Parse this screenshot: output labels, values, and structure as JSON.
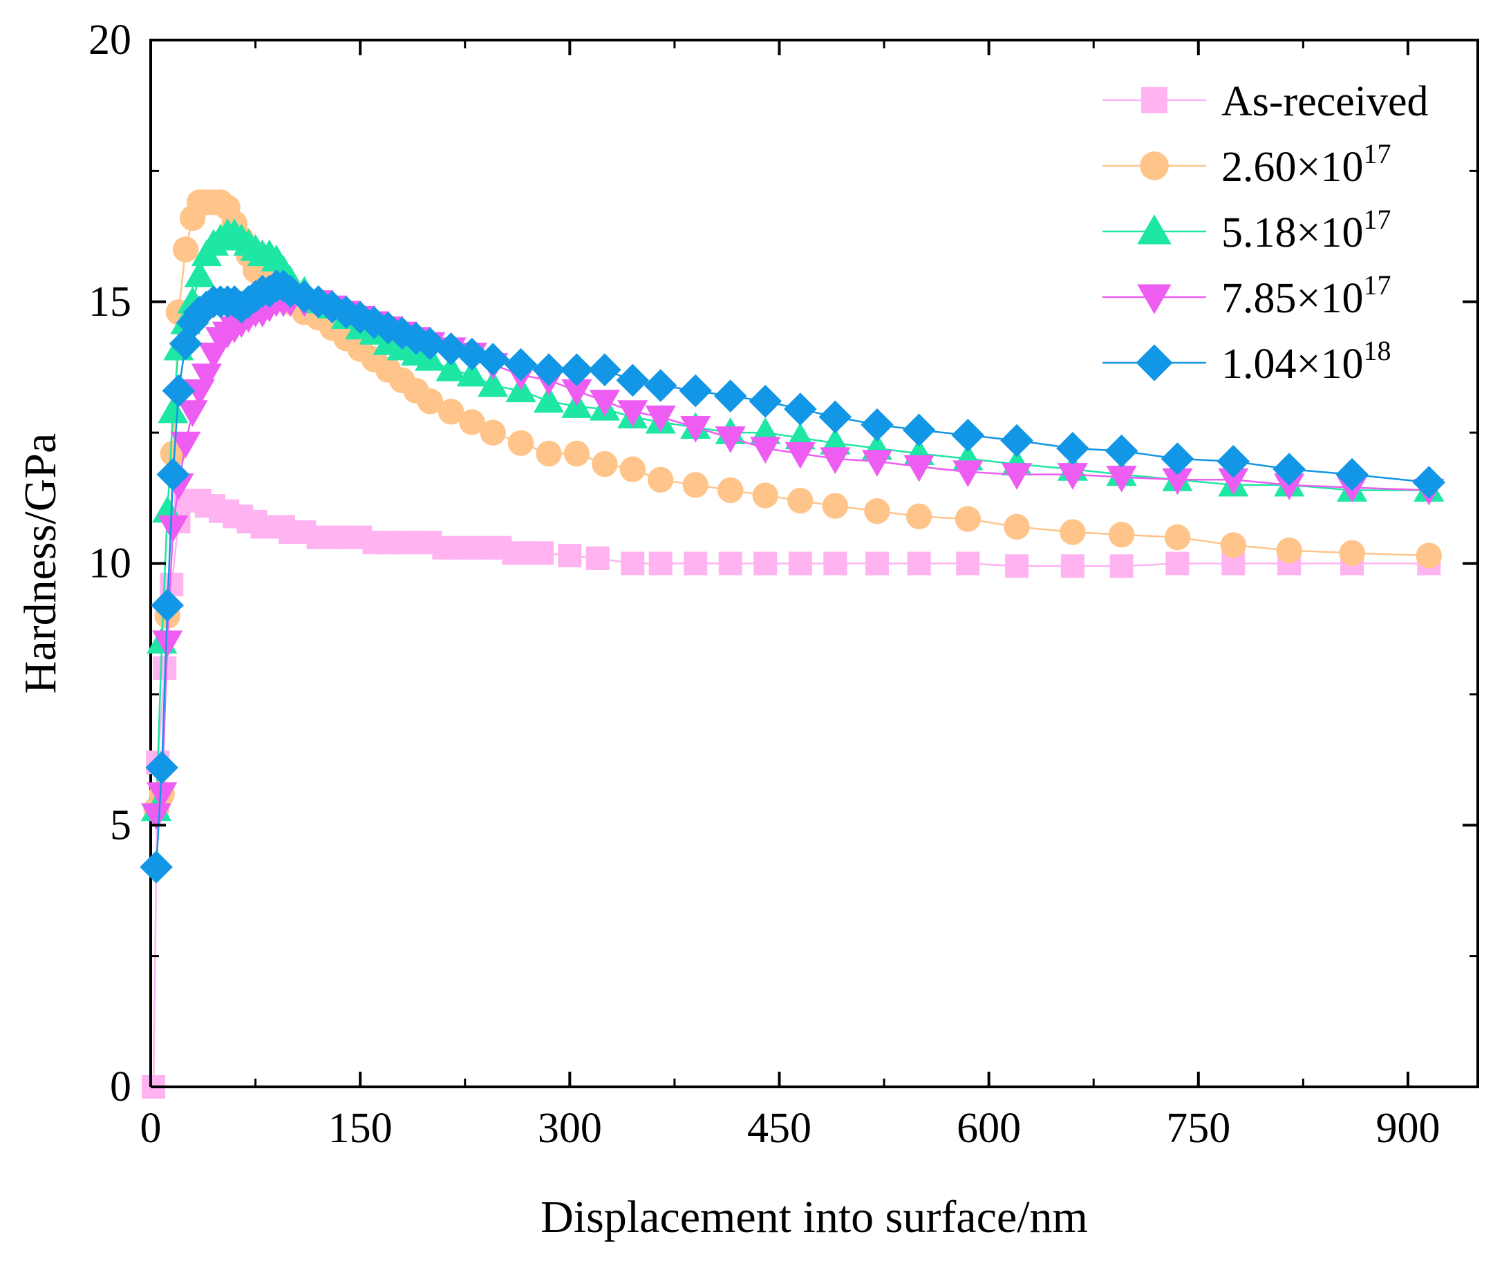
{
  "chart_data": {
    "type": "line",
    "title": "",
    "xlabel": "Displacement into surface/nm",
    "ylabel": "Hardness/GPa",
    "xlim": [
      0,
      950
    ],
    "ylim": [
      0,
      20
    ],
    "x_ticks": [
      0,
      150,
      300,
      450,
      600,
      750,
      900
    ],
    "x_tick_labels": [
      "0",
      "150",
      "300",
      "450",
      "600",
      "750",
      "900"
    ],
    "y_ticks": [
      0,
      5,
      10,
      15,
      20
    ],
    "y_tick_labels": [
      "0",
      "5",
      "10",
      "15",
      "20"
    ],
    "grid": false,
    "legend_position": "top-right",
    "series": [
      {
        "name": "As-received",
        "label_main": "As-received",
        "label_sup": "",
        "color": "#FFB3F0",
        "marker": "square",
        "x": [
          2,
          5,
          10,
          15,
          20,
          25,
          30,
          35,
          40,
          45,
          50,
          55,
          60,
          65,
          70,
          75,
          80,
          85,
          90,
          95,
          100,
          110,
          120,
          130,
          140,
          150,
          160,
          170,
          180,
          190,
          200,
          210,
          220,
          230,
          240,
          250,
          260,
          270,
          280,
          300,
          320,
          345,
          365,
          390,
          415,
          440,
          465,
          490,
          520,
          550,
          585,
          620,
          660,
          695,
          735,
          775,
          815,
          860,
          915
        ],
        "y": [
          0,
          6.2,
          8,
          9.6,
          10.8,
          11.2,
          11.2,
          11.2,
          11.1,
          11.1,
          11.0,
          11.0,
          10.9,
          10.9,
          10.8,
          10.8,
          10.7,
          10.7,
          10.7,
          10.7,
          10.6,
          10.6,
          10.5,
          10.5,
          10.5,
          10.5,
          10.4,
          10.4,
          10.4,
          10.4,
          10.4,
          10.3,
          10.3,
          10.3,
          10.3,
          10.3,
          10.2,
          10.2,
          10.2,
          10.15,
          10.1,
          10.0,
          10.0,
          10.0,
          10.0,
          10.0,
          10.0,
          10.0,
          10.0,
          10.0,
          10.0,
          9.95,
          9.95,
          9.95,
          10.0,
          10.0,
          10.0,
          10.0,
          10.0
        ]
      },
      {
        "name": "2.60×10^17",
        "label_main": "2.60×10",
        "label_sup": "17",
        "color": "#FFC48A",
        "marker": "circle",
        "x": [
          4,
          8,
          12,
          16,
          20,
          25,
          30,
          35,
          40,
          45,
          50,
          55,
          60,
          65,
          70,
          75,
          80,
          85,
          90,
          95,
          100,
          110,
          120,
          130,
          140,
          150,
          160,
          170,
          180,
          190,
          200,
          215,
          230,
          245,
          265,
          285,
          305,
          325,
          345,
          365,
          390,
          415,
          440,
          465,
          490,
          520,
          550,
          585,
          620,
          660,
          695,
          735,
          775,
          815,
          860,
          915
        ],
        "y": [
          5.3,
          5.6,
          9,
          12.1,
          14.8,
          16.0,
          16.6,
          16.9,
          16.9,
          16.9,
          16.9,
          16.8,
          16.5,
          16.2,
          15.9,
          15.6,
          15.5,
          15.3,
          15.2,
          15.1,
          15.0,
          14.8,
          14.7,
          14.5,
          14.3,
          14.1,
          13.9,
          13.7,
          13.5,
          13.3,
          13.1,
          12.9,
          12.7,
          12.5,
          12.3,
          12.1,
          12.1,
          11.9,
          11.8,
          11.6,
          11.5,
          11.4,
          11.3,
          11.2,
          11.1,
          11.0,
          10.9,
          10.85,
          10.7,
          10.6,
          10.55,
          10.5,
          10.35,
          10.25,
          10.2,
          10.15
        ]
      },
      {
        "name": "5.18×10^17",
        "label_main": "5.18×10",
        "label_sup": "17",
        "color": "#1EE6A4",
        "marker": "triangle-up",
        "x": [
          4,
          8,
          12,
          16,
          20,
          25,
          30,
          35,
          40,
          45,
          50,
          55,
          60,
          65,
          70,
          75,
          80,
          85,
          90,
          95,
          100,
          110,
          120,
          130,
          140,
          150,
          160,
          170,
          180,
          190,
          200,
          215,
          230,
          245,
          265,
          285,
          305,
          325,
          345,
          365,
          390,
          415,
          440,
          465,
          490,
          520,
          550,
          585,
          620,
          660,
          695,
          735,
          775,
          815,
          860,
          915
        ],
        "y": [
          5.3,
          8.5,
          11,
          12.9,
          14.1,
          14.6,
          15.0,
          15.5,
          15.9,
          16.1,
          16.2,
          16.3,
          16.3,
          16.2,
          16.1,
          16.0,
          15.9,
          15.9,
          15.8,
          15.6,
          15.4,
          15.2,
          15.0,
          14.9,
          14.7,
          14.5,
          14.4,
          14.2,
          14.1,
          14.0,
          13.9,
          13.7,
          13.6,
          13.4,
          13.3,
          13.1,
          13.0,
          12.95,
          12.8,
          12.7,
          12.6,
          12.5,
          12.5,
          12.4,
          12.3,
          12.2,
          12.1,
          12.0,
          11.9,
          11.8,
          11.7,
          11.6,
          11.5,
          11.5,
          11.4,
          11.4
        ]
      },
      {
        "name": "7.85×10^17",
        "label_main": "7.85×10",
        "label_sup": "17",
        "color": "#EE5DF2",
        "marker": "triangle-down",
        "x": [
          4,
          8,
          12,
          16,
          20,
          25,
          30,
          35,
          40,
          45,
          50,
          55,
          60,
          65,
          70,
          75,
          80,
          85,
          90,
          95,
          100,
          110,
          120,
          130,
          140,
          150,
          160,
          170,
          180,
          190,
          200,
          215,
          230,
          245,
          265,
          285,
          305,
          325,
          345,
          365,
          390,
          415,
          440,
          465,
          490,
          520,
          550,
          585,
          620,
          660,
          695,
          735,
          775,
          815,
          860,
          915
        ],
        "y": [
          5.2,
          5.6,
          8.5,
          10.7,
          11.5,
          12.3,
          12.9,
          13.3,
          13.6,
          14.0,
          14.3,
          14.4,
          14.5,
          14.6,
          14.7,
          14.8,
          14.8,
          14.9,
          15.0,
          15.0,
          15.0,
          15.0,
          15.0,
          14.9,
          14.8,
          14.7,
          14.6,
          14.5,
          14.4,
          14.3,
          14.2,
          14.1,
          14.0,
          13.8,
          13.6,
          13.5,
          13.3,
          13.1,
          12.9,
          12.8,
          12.6,
          12.4,
          12.2,
          12.1,
          12.0,
          11.95,
          11.85,
          11.75,
          11.7,
          11.7,
          11.65,
          11.6,
          11.6,
          11.5,
          11.45,
          11.4
        ]
      },
      {
        "name": "1.04×10^18",
        "label_main": "1.04×10",
        "label_sup": "18",
        "color": "#1296E6",
        "marker": "diamond",
        "x": [
          4,
          8,
          12,
          16,
          20,
          25,
          30,
          35,
          40,
          45,
          50,
          55,
          60,
          65,
          70,
          75,
          80,
          85,
          90,
          95,
          100,
          110,
          120,
          130,
          140,
          150,
          160,
          170,
          180,
          190,
          200,
          215,
          230,
          245,
          265,
          285,
          305,
          325,
          345,
          365,
          390,
          415,
          440,
          465,
          490,
          520,
          550,
          585,
          620,
          660,
          695,
          735,
          775,
          815,
          860,
          915
        ],
        "y": [
          4.2,
          6.1,
          9.2,
          11.7,
          13.3,
          14.2,
          14.6,
          14.8,
          14.9,
          15.0,
          15.0,
          15.0,
          15.0,
          14.9,
          15.0,
          15.1,
          15.2,
          15.2,
          15.3,
          15.3,
          15.2,
          15.1,
          15.0,
          14.9,
          14.8,
          14.7,
          14.6,
          14.5,
          14.4,
          14.3,
          14.2,
          14.1,
          14.0,
          13.9,
          13.8,
          13.7,
          13.7,
          13.7,
          13.5,
          13.4,
          13.3,
          13.2,
          13.1,
          12.95,
          12.8,
          12.65,
          12.55,
          12.45,
          12.35,
          12.2,
          12.15,
          12.0,
          11.95,
          11.8,
          11.7,
          11.55
        ]
      }
    ]
  }
}
